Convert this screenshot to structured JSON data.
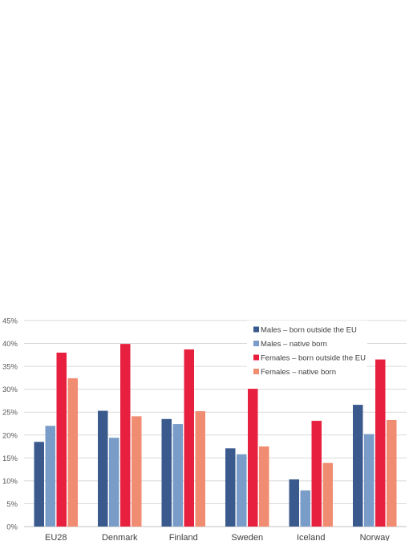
{
  "chart_data": {
    "type": "bar",
    "categories": [
      "EU28",
      "Denmark",
      "Finland",
      "Sweden",
      "Iceland",
      "Norway"
    ],
    "series": [
      {
        "name": "Males – born outside the EU",
        "color": "#3a5a8e",
        "values": [
          18.5,
          25.3,
          23.5,
          17.1,
          10.3,
          26.6
        ]
      },
      {
        "name": "Males – native born",
        "color": "#7a9cc8",
        "values": [
          22.0,
          19.4,
          22.4,
          15.8,
          7.9,
          20.2
        ]
      },
      {
        "name": "Females – born outside the EU",
        "color": "#e8203f",
        "values": [
          38.0,
          39.9,
          38.7,
          30.1,
          23.1,
          36.5
        ]
      },
      {
        "name": "Females – native born",
        "color": "#f08c72",
        "values": [
          32.4,
          24.1,
          25.2,
          17.5,
          13.9,
          23.3
        ]
      }
    ],
    "ylim": [
      0,
      45
    ],
    "yticks": [
      "0%",
      "5%",
      "10%",
      "15%",
      "20%",
      "25%",
      "30%",
      "35%",
      "40%",
      "45%"
    ],
    "grid": true,
    "legend_position": "top-right"
  }
}
